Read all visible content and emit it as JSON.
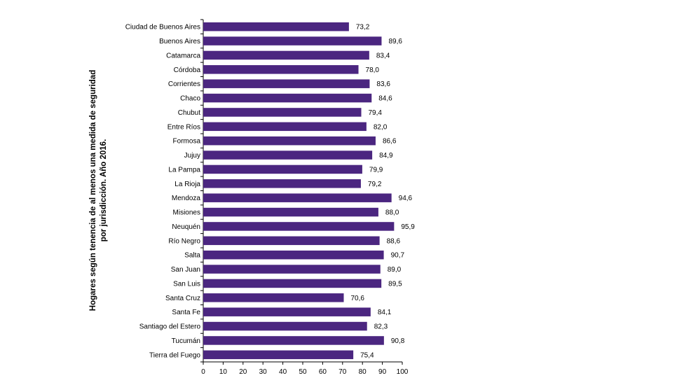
{
  "chart_data": {
    "type": "bar",
    "orientation": "horizontal",
    "title_lines": [
      "Hogares según tenencia de al menos una medida de seguridad",
      "por jurisdicción. Año 2016."
    ],
    "categories": [
      "Ciudad de Buenos Aires",
      "Buenos Aires",
      "Catamarca",
      "Córdoba",
      "Corrientes",
      "Chaco",
      "Chubut",
      "Entre Ríos",
      "Formosa",
      "Jujuy",
      "La Pampa",
      "La Rioja",
      "Mendoza",
      "Misiones",
      "Neuquén",
      "Río Negro",
      "Salta",
      "San Juan",
      "San Luis",
      "Santa Cruz",
      "Santa Fe",
      "Santiago del Estero",
      "Tucumán",
      "Tierra del Fuego"
    ],
    "values": [
      73.2,
      89.6,
      83.4,
      78.0,
      83.6,
      84.6,
      79.4,
      82.0,
      86.6,
      84.9,
      79.9,
      79.2,
      94.6,
      88.0,
      95.9,
      88.6,
      90.7,
      89.0,
      89.5,
      70.6,
      84.1,
      82.3,
      90.8,
      75.4
    ],
    "value_labels": [
      "73,2",
      "89,6",
      "83,4",
      "78,0",
      "83,6",
      "84,6",
      "79,4",
      "82,0",
      "86,6",
      "84,9",
      "79,9",
      "79,2",
      "94,6",
      "88,0",
      "95,9",
      "88,6",
      "90,7",
      "89,0",
      "89,5",
      "70,6",
      "84,1",
      "82,3",
      "90,8",
      "75,4"
    ],
    "xlim": [
      0,
      100
    ],
    "xticks": [
      "0",
      "10",
      "20",
      "30",
      "40",
      "50",
      "60",
      "70",
      "80",
      "90",
      "100"
    ],
    "bar_color": "#4b2680",
    "grid": false,
    "legend": "none"
  }
}
